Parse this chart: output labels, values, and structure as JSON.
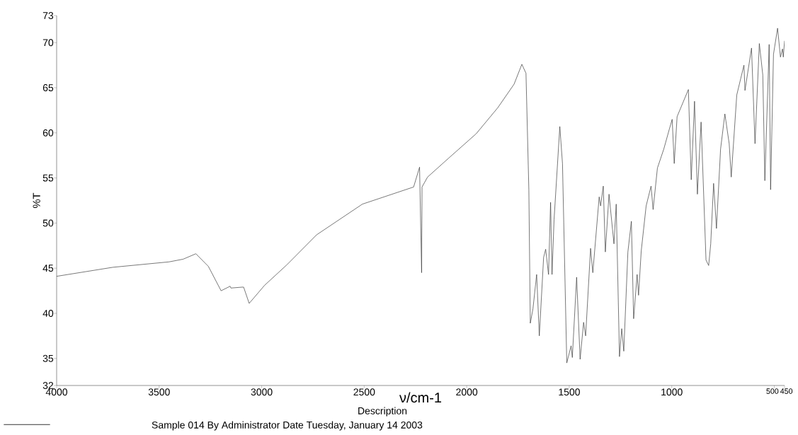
{
  "chart_data": {
    "type": "line",
    "xlabel": "ν/cm-1",
    "ylabel": "%T",
    "legend_title": "Description",
    "legend": "bottom",
    "xlim": [
      4000,
      450
    ],
    "ylim": [
      32,
      73
    ],
    "xticks": [
      4000,
      3500,
      3000,
      2500,
      2000,
      1500,
      1000,
      500,
      450
    ],
    "yticks": [
      32,
      35,
      40,
      45,
      50,
      55,
      60,
      65,
      70,
      73
    ],
    "series": [
      {
        "name": "Sample 014 By Administrator Date Tuesday, January 14 2003",
        "color": "#333333",
        "x": [
          4000,
          3726,
          3452,
          3383,
          3321,
          3260,
          3198,
          3154,
          3150,
          3095,
          3088,
          3061,
          2986,
          2876,
          2732,
          2509,
          2259,
          2230,
          2220,
          2218,
          2191,
          2088,
          1954,
          1848,
          1769,
          1731,
          1711,
          1697,
          1690,
          1677,
          1659,
          1646,
          1625,
          1615,
          1601,
          1591,
          1584,
          1574,
          1546,
          1533,
          1512,
          1491,
          1485,
          1464,
          1447,
          1430,
          1420,
          1396,
          1385,
          1354,
          1347,
          1334,
          1324,
          1306,
          1289,
          1282,
          1271,
          1255,
          1244,
          1234,
          1214,
          1197,
          1186,
          1169,
          1162,
          1149,
          1125,
          1101,
          1091,
          1070,
          1039,
          1012,
          998,
          988,
          974,
          919,
          905,
          889,
          875,
          857,
          833,
          820,
          810,
          796,
          782,
          762,
          741,
          720,
          710,
          683,
          648,
          643,
          611,
          594,
          573,
          556,
          546,
          525,
          518,
          504,
          484,
          470,
          460,
          456,
          450
        ],
        "values": [
          44.1,
          45.1,
          45.7,
          46.0,
          46.6,
          45.2,
          42.5,
          43.0,
          42.8,
          42.9,
          42.9,
          41.1,
          43.1,
          45.4,
          48.7,
          52.1,
          54.0,
          56.2,
          44.5,
          54.0,
          55.1,
          57.2,
          59.9,
          62.8,
          65.4,
          67.6,
          66.6,
          53.7,
          38.9,
          40.5,
          44.3,
          37.5,
          46.2,
          47.1,
          44.3,
          52.3,
          44.3,
          50.4,
          60.7,
          56.6,
          34.5,
          36.4,
          35.1,
          44.0,
          34.9,
          39.0,
          37.5,
          47.2,
          44.5,
          52.9,
          51.9,
          54.1,
          46.8,
          53.2,
          49.3,
          47.7,
          52.1,
          35.2,
          38.3,
          35.8,
          46.8,
          50.2,
          39.4,
          44.3,
          42.0,
          46.9,
          51.9,
          54.1,
          51.5,
          56.1,
          58.2,
          60.4,
          61.5,
          56.6,
          61.8,
          64.8,
          54.8,
          63.5,
          53.2,
          61.2,
          45.9,
          45.3,
          47.7,
          54.4,
          49.4,
          58.2,
          62.1,
          58.8,
          55.1,
          64.2,
          67.5,
          64.7,
          69.4,
          58.8,
          69.9,
          66.4,
          54.7,
          69.8,
          53.7,
          68.7,
          71.6,
          68.4,
          69.3,
          68.4,
          70.2
        ]
      }
    ]
  }
}
